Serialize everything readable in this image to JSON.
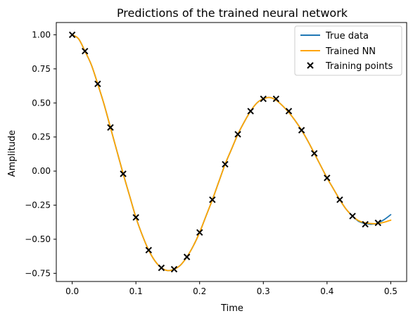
{
  "chart_data": {
    "type": "line",
    "title": "Predictions of the trained neural network",
    "xlabel": "Time",
    "ylabel": "Amplitude",
    "xlim": [
      -0.025,
      0.525
    ],
    "ylim": [
      -0.81,
      1.09
    ],
    "x_ticks": [
      0.0,
      0.1,
      0.2,
      0.3,
      0.4,
      0.5
    ],
    "x_tick_labels": [
      "0.0",
      "0.1",
      "0.2",
      "0.3",
      "0.4",
      "0.5"
    ],
    "y_ticks": [
      1.0,
      0.75,
      0.5,
      0.25,
      0.0,
      -0.25,
      -0.5,
      -0.75
    ],
    "y_tick_labels": [
      "1.00",
      "0.75",
      "0.50",
      "0.25",
      "0.00",
      "−0.25",
      "−0.50",
      "−0.75"
    ],
    "grid": false,
    "legend_position": "top-right",
    "series": [
      {
        "name": "True data",
        "kind": "line",
        "color": "#1f77b4",
        "x": [
          0.0,
          0.01,
          0.02,
          0.03,
          0.04,
          0.05,
          0.06,
          0.07,
          0.08,
          0.09,
          0.1,
          0.11,
          0.12,
          0.13,
          0.14,
          0.15,
          0.16,
          0.17,
          0.18,
          0.19,
          0.2,
          0.21,
          0.22,
          0.23,
          0.24,
          0.25,
          0.26,
          0.27,
          0.28,
          0.29,
          0.3,
          0.31,
          0.32,
          0.33,
          0.34,
          0.35,
          0.36,
          0.37,
          0.38,
          0.39,
          0.4,
          0.41,
          0.42,
          0.43,
          0.44,
          0.45,
          0.46,
          0.47,
          0.48,
          0.49,
          0.5
        ],
        "y": [
          1.0,
          0.97,
          0.88,
          0.78,
          0.64,
          0.49,
          0.32,
          0.15,
          -0.02,
          -0.18,
          -0.34,
          -0.47,
          -0.58,
          -0.66,
          -0.71,
          -0.73,
          -0.72,
          -0.69,
          -0.63,
          -0.55,
          -0.45,
          -0.33,
          -0.21,
          -0.08,
          0.05,
          0.16,
          0.27,
          0.36,
          0.44,
          0.5,
          0.53,
          0.54,
          0.52,
          0.48,
          0.43,
          0.37,
          0.3,
          0.22,
          0.13,
          0.04,
          -0.05,
          -0.13,
          -0.21,
          -0.28,
          -0.33,
          -0.37,
          -0.385,
          -0.39,
          -0.38,
          -0.355,
          -0.32
        ]
      },
      {
        "name": "Trained NN",
        "kind": "line",
        "color": "#ffa500",
        "x": [
          0.0,
          0.01,
          0.02,
          0.03,
          0.04,
          0.05,
          0.06,
          0.07,
          0.08,
          0.09,
          0.1,
          0.11,
          0.12,
          0.13,
          0.14,
          0.15,
          0.16,
          0.17,
          0.18,
          0.19,
          0.2,
          0.21,
          0.22,
          0.23,
          0.24,
          0.25,
          0.26,
          0.27,
          0.28,
          0.29,
          0.3,
          0.31,
          0.32,
          0.33,
          0.34,
          0.35,
          0.36,
          0.37,
          0.38,
          0.39,
          0.4,
          0.41,
          0.42,
          0.43,
          0.44,
          0.45,
          0.46,
          0.47,
          0.48,
          0.49,
          0.5
        ],
        "y": [
          1.0,
          0.97,
          0.88,
          0.78,
          0.64,
          0.49,
          0.32,
          0.15,
          -0.02,
          -0.18,
          -0.34,
          -0.47,
          -0.58,
          -0.66,
          -0.71,
          -0.73,
          -0.72,
          -0.69,
          -0.63,
          -0.55,
          -0.45,
          -0.33,
          -0.21,
          -0.08,
          0.05,
          0.16,
          0.27,
          0.36,
          0.44,
          0.5,
          0.53,
          0.54,
          0.52,
          0.48,
          0.43,
          0.37,
          0.3,
          0.22,
          0.13,
          0.04,
          -0.05,
          -0.13,
          -0.21,
          -0.28,
          -0.33,
          -0.365,
          -0.38,
          -0.385,
          -0.385,
          -0.375,
          -0.36
        ]
      },
      {
        "name": "Training points",
        "kind": "scatter",
        "marker": "x",
        "color": "#000000",
        "x": [
          0.0,
          0.02,
          0.04,
          0.06,
          0.08,
          0.1,
          0.12,
          0.14,
          0.16,
          0.18,
          0.2,
          0.22,
          0.24,
          0.26,
          0.28,
          0.3,
          0.32,
          0.34,
          0.36,
          0.38,
          0.4,
          0.42,
          0.44,
          0.46,
          0.48
        ],
        "y": [
          1.0,
          0.88,
          0.64,
          0.32,
          -0.02,
          -0.34,
          -0.58,
          -0.71,
          -0.72,
          -0.63,
          -0.45,
          -0.21,
          0.05,
          0.27,
          0.44,
          0.53,
          0.53,
          0.44,
          0.3,
          0.13,
          -0.05,
          -0.21,
          -0.33,
          -0.39,
          -0.38
        ]
      }
    ]
  }
}
